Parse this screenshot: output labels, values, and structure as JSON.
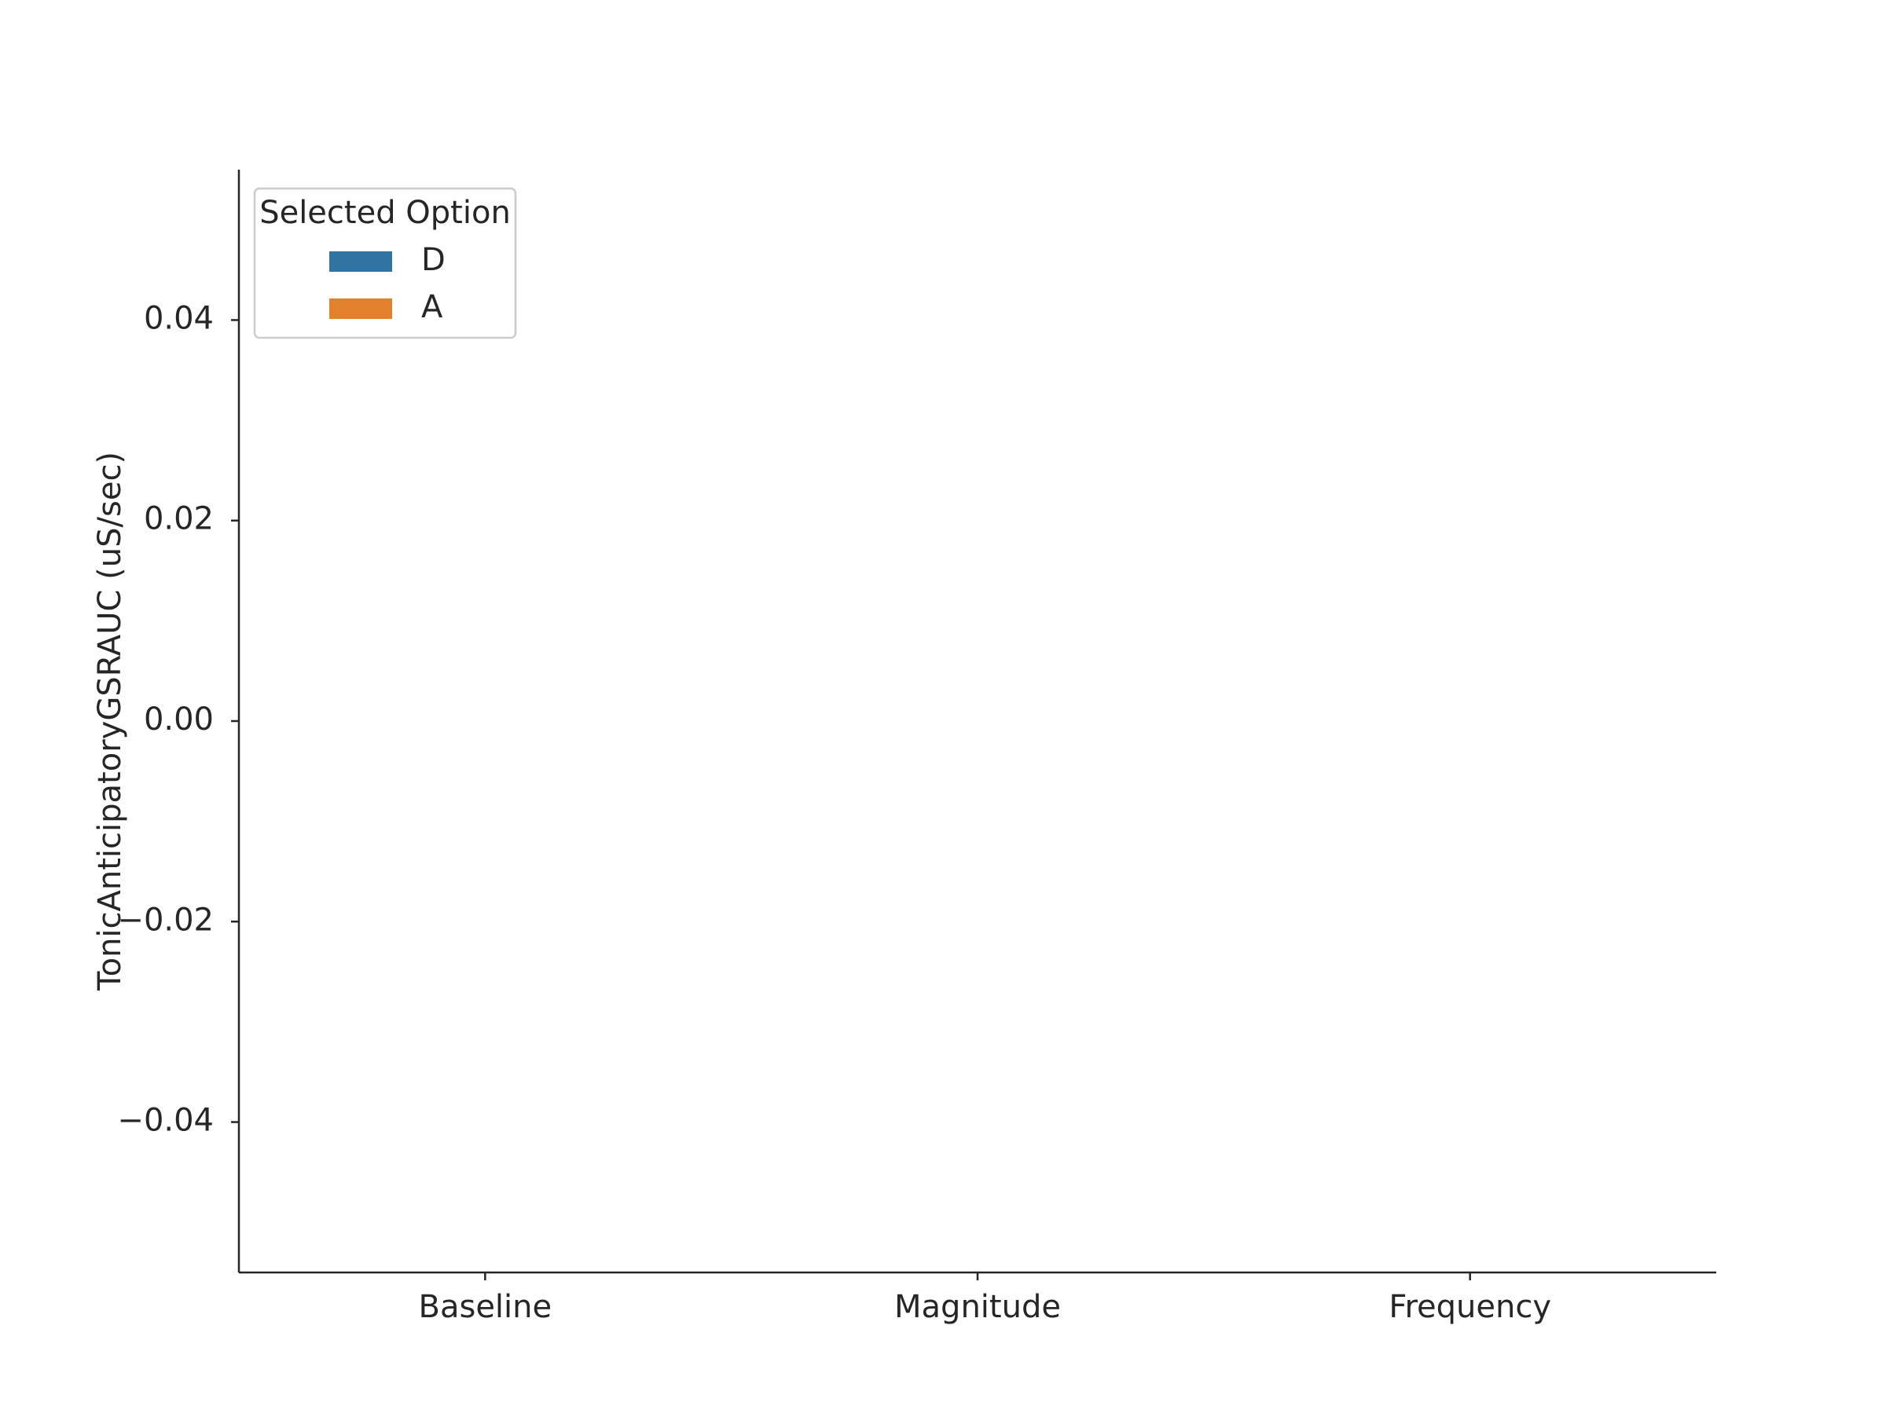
{
  "chart_data": {
    "type": "bar",
    "title": "",
    "xlabel": "",
    "ylabel": "TonicAnticipatoryGSRAUC (uS/sec)",
    "categories": [
      "Baseline",
      "Magnitude",
      "Frequency"
    ],
    "y_ticks": [
      -0.04,
      -0.02,
      0.0,
      0.02,
      0.04
    ],
    "y_tick_labels": [
      "−0.04",
      "−0.02",
      "0.00",
      "0.02",
      "0.04"
    ],
    "ylim": [
      -0.055,
      0.055
    ],
    "grid": false,
    "legend": {
      "title": "Selected Option",
      "placement": "top-left",
      "entries": [
        {
          "label": "D",
          "color": "#3274a1"
        },
        {
          "label": "A",
          "color": "#e1812c"
        }
      ]
    },
    "series": [
      {
        "name": "D",
        "color": "#3274a1",
        "values": [
          null,
          null,
          null
        ]
      },
      {
        "name": "A",
        "color": "#e1812c",
        "values": [
          null,
          null,
          null
        ]
      }
    ]
  }
}
